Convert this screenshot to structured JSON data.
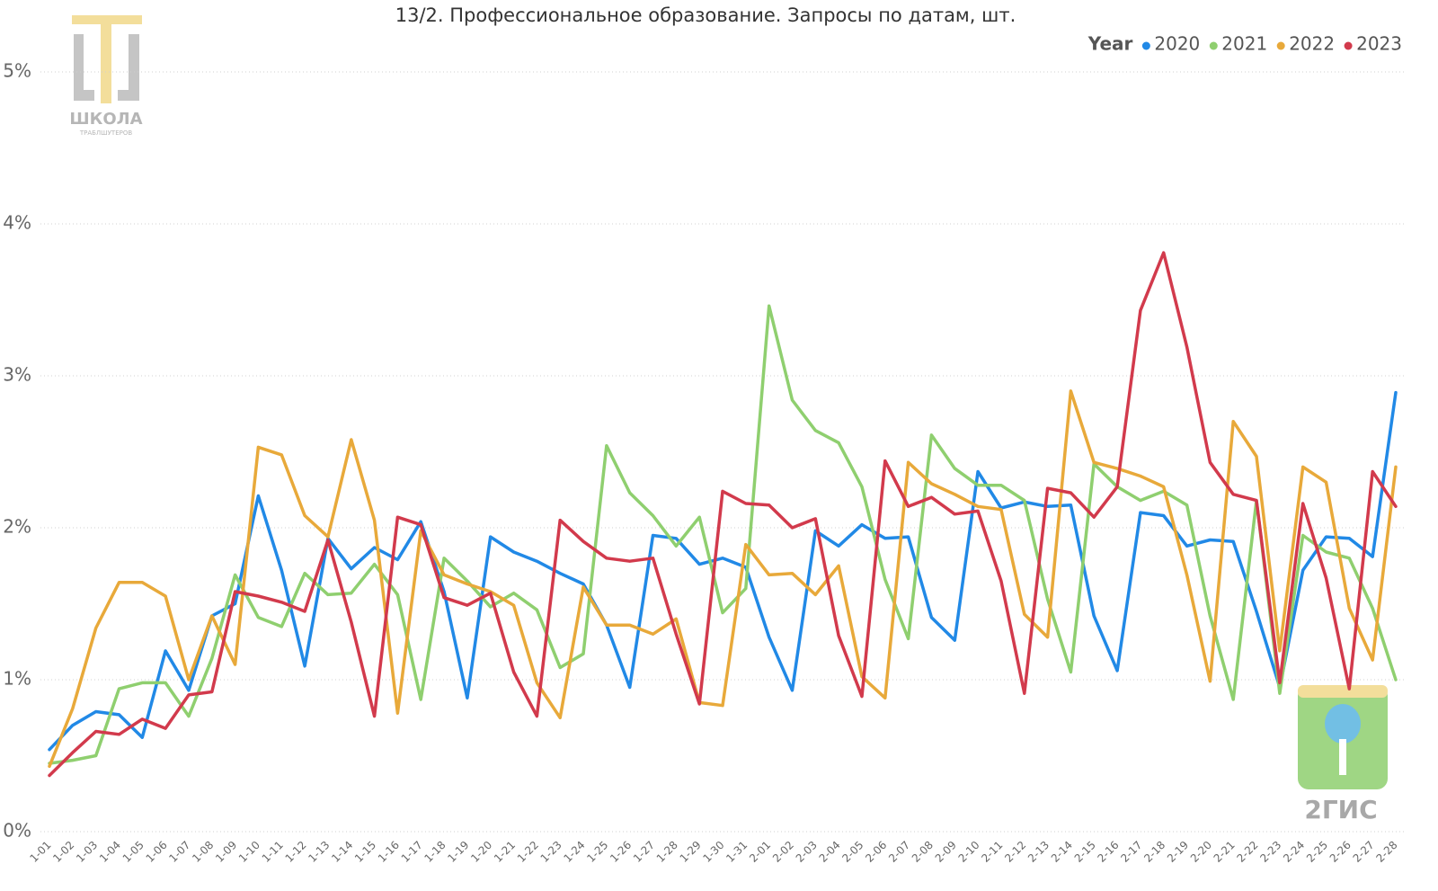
{
  "chart_data": {
    "type": "line",
    "title": "13/2. Профессиональное образование. Запросы по датам, шт.",
    "legend_title": "Year",
    "legend_position": "top-right",
    "grid": true,
    "watermarks": [
      "ШКОЛА",
      "ТРАБЛШУТЕРОВ",
      "2ГИС"
    ],
    "categories": [
      "1-01",
      "1-02",
      "1-03",
      "1-04",
      "1-05",
      "1-06",
      "1-07",
      "1-08",
      "1-09",
      "1-10",
      "1-11",
      "1-12",
      "1-13",
      "1-14",
      "1-15",
      "1-16",
      "1-17",
      "1-18",
      "1-19",
      "1-20",
      "1-21",
      "1-22",
      "1-23",
      "1-24",
      "1-25",
      "1-26",
      "1-27",
      "1-28",
      "1-29",
      "1-30",
      "1-31",
      "2-01",
      "2-02",
      "2-03",
      "2-04",
      "2-05",
      "2-06",
      "2-07",
      "2-08",
      "2-09",
      "2-10",
      "2-11",
      "2-12",
      "2-13",
      "2-14",
      "2-15",
      "2-16",
      "2-17",
      "2-18",
      "2-19",
      "2-20",
      "2-21",
      "2-22",
      "2-23",
      "2-24",
      "2-25",
      "2-26",
      "2-27",
      "2-28"
    ],
    "ylim": [
      0,
      5.2
    ],
    "yticks": [
      {
        "value": 0,
        "label": "0%"
      },
      {
        "value": 1,
        "label": "1%"
      },
      {
        "value": 2,
        "label": "2%"
      },
      {
        "value": 3,
        "label": "3%"
      },
      {
        "value": 4,
        "label": "4%"
      },
      {
        "value": 5,
        "label": "5%"
      }
    ],
    "series": [
      {
        "name": "2020",
        "color": "#2189e6",
        "values": [
          0.54,
          0.7,
          0.79,
          0.77,
          0.62,
          1.19,
          0.93,
          1.42,
          1.5,
          2.21,
          1.72,
          1.09,
          1.93,
          1.73,
          1.87,
          1.79,
          2.04,
          1.58,
          0.88,
          1.94,
          1.84,
          1.78,
          1.7,
          1.63,
          1.36,
          0.95,
          1.95,
          1.93,
          1.76,
          1.8,
          1.74,
          1.28,
          0.93,
          1.98,
          1.88,
          2.02,
          1.93,
          1.94,
          1.41,
          1.26,
          2.37,
          2.13,
          2.17,
          2.14,
          2.15,
          1.42,
          1.06,
          2.1,
          2.08,
          1.88,
          1.92,
          1.91,
          1.45,
          0.95,
          1.72,
          1.94,
          1.93,
          1.81,
          2.89
        ]
      },
      {
        "name": "2021",
        "color": "#8fcf6f",
        "values": [
          0.45,
          0.47,
          0.5,
          0.94,
          0.98,
          0.98,
          0.76,
          1.14,
          1.69,
          1.41,
          1.35,
          1.7,
          1.56,
          1.57,
          1.76,
          1.56,
          0.87,
          1.8,
          1.65,
          1.48,
          1.57,
          1.46,
          1.08,
          1.17,
          2.54,
          2.23,
          2.08,
          1.88,
          2.07,
          1.44,
          1.6,
          3.46,
          2.84,
          2.64,
          2.56,
          2.27,
          1.66,
          1.27,
          2.61,
          2.39,
          2.28,
          2.28,
          2.18,
          1.53,
          1.05,
          2.42,
          2.27,
          2.18,
          2.24,
          2.15,
          1.42,
          0.87,
          2.18,
          0.91,
          1.95,
          1.84,
          1.8,
          1.47,
          1.0
        ]
      },
      {
        "name": "2022",
        "color": "#e8a93a",
        "values": [
          0.43,
          0.81,
          1.34,
          1.64,
          1.64,
          1.55,
          1.0,
          1.42,
          1.1,
          2.53,
          2.48,
          2.08,
          1.94,
          2.58,
          2.05,
          0.78,
          1.98,
          1.69,
          1.63,
          1.58,
          1.49,
          0.98,
          0.75,
          1.61,
          1.36,
          1.36,
          1.3,
          1.4,
          0.85,
          0.83,
          1.89,
          1.69,
          1.7,
          1.56,
          1.75,
          1.02,
          0.88,
          2.43,
          2.29,
          2.22,
          2.14,
          2.12,
          1.43,
          1.28,
          2.9,
          2.43,
          2.39,
          2.34,
          2.27,
          1.69,
          0.99,
          2.7,
          2.47,
          1.19,
          2.4,
          2.3,
          1.47,
          1.13,
          2.4
        ]
      },
      {
        "name": "2023",
        "color": "#d23a4c",
        "values": [
          0.37,
          0.52,
          0.66,
          0.64,
          0.74,
          0.68,
          0.9,
          0.92,
          1.58,
          1.55,
          1.51,
          1.45,
          1.92,
          1.38,
          0.76,
          2.07,
          2.02,
          1.54,
          1.49,
          1.57,
          1.05,
          0.76,
          2.05,
          1.91,
          1.8,
          1.78,
          1.8,
          1.3,
          0.84,
          2.24,
          2.16,
          2.15,
          2.0,
          2.06,
          1.29,
          0.89,
          2.44,
          2.14,
          2.2,
          2.09,
          2.11,
          1.65,
          0.91,
          2.26,
          2.23,
          2.07,
          2.27,
          3.43,
          3.81,
          3.19,
          2.43,
          2.22,
          2.18,
          0.98,
          2.16,
          1.67,
          0.94,
          2.37,
          2.14
        ]
      }
    ]
  }
}
